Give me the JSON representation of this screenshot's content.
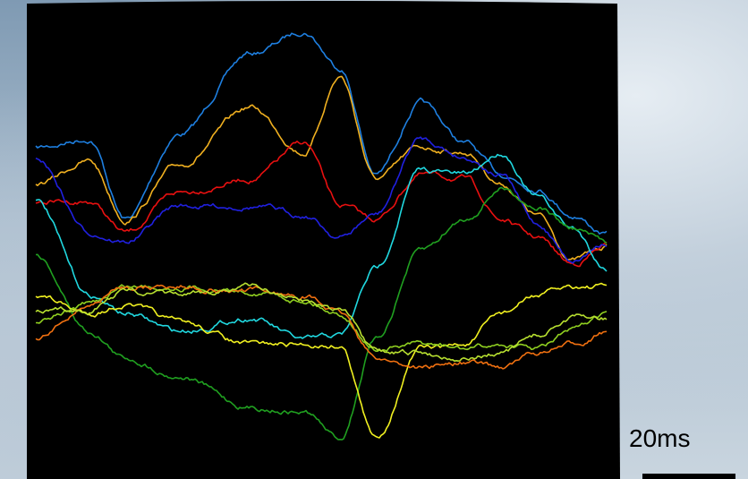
{
  "scale_bar": {
    "label": "20ms"
  }
}
